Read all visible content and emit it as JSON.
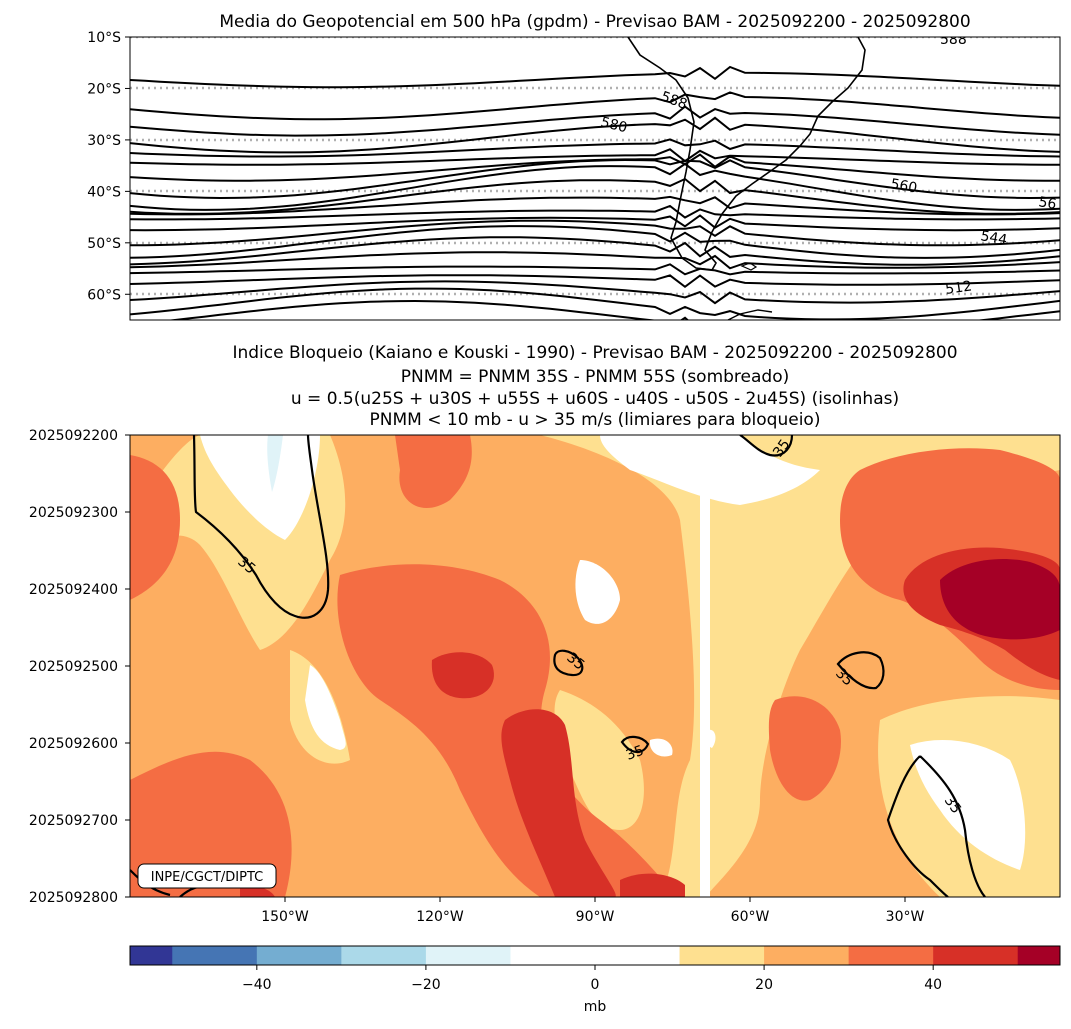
{
  "chart_data": [
    {
      "type": "contour-map",
      "title": "Media do Geopotencial em 500 hPa (gpdm) - Previsao BAM - 2025092200 - 2025092800",
      "ytick_labels": [
        "10°S",
        "20°S",
        "30°S",
        "40°S",
        "50°S",
        "60°S"
      ],
      "ytick_values": [
        -10,
        -20,
        -30,
        -40,
        -50,
        -60
      ],
      "ylim": [
        -65,
        -10
      ],
      "grid": "dotted gray at latitudes",
      "contour_labels": [
        "588",
        "588",
        "580",
        "560",
        "56",
        "544",
        "512"
      ]
    },
    {
      "type": "heatmap",
      "title_lines": [
        "Indice Bloqueio (Kaiano e Kouski - 1990) - Previsao BAM - 2025092200 - 2025092800",
        "PNMM = PNMM 35S - PNMM 55S (sombreado)",
        "u = 0.5(u25S + u30S + u55S + u60S - u40S - u50S - 2u45S) (isolinhas)",
        "PNMM < 10 mb - u > 35 m/s (limiares para bloqueio)"
      ],
      "y_ticks": [
        "2025092200",
        "2025092300",
        "2025092400",
        "2025092500",
        "2025092600",
        "2025092700",
        "2025092800"
      ],
      "x_ticks": [
        "150°W",
        "120°W",
        "90°W",
        "60°W",
        "30°W"
      ],
      "x_tick_values": [
        -150,
        -120,
        -90,
        -60,
        -30
      ],
      "xlim": [
        -180,
        0
      ],
      "contour_level": 35,
      "contour_labels": [
        "35",
        "35",
        "35",
        "35",
        "35",
        "35"
      ],
      "watermark": "INPE/CGCT/DIPTC"
    }
  ],
  "colorbar": {
    "label": "mb",
    "tick_labels": [
      "−40",
      "−20",
      "0",
      "20",
      "40"
    ],
    "tick_values": [
      -40,
      -20,
      0,
      20,
      40
    ],
    "range": [
      -55,
      55
    ],
    "bin_edges": [
      -55,
      -50,
      -40,
      -30,
      -20,
      -10,
      10,
      20,
      30,
      40,
      50,
      55
    ],
    "colors": [
      "#313695",
      "#4575b4",
      "#74add1",
      "#abd9e9",
      "#e0f3f8",
      "#ffffff",
      "#fee090",
      "#fdae61",
      "#f46d43",
      "#d73027",
      "#a50026"
    ]
  }
}
